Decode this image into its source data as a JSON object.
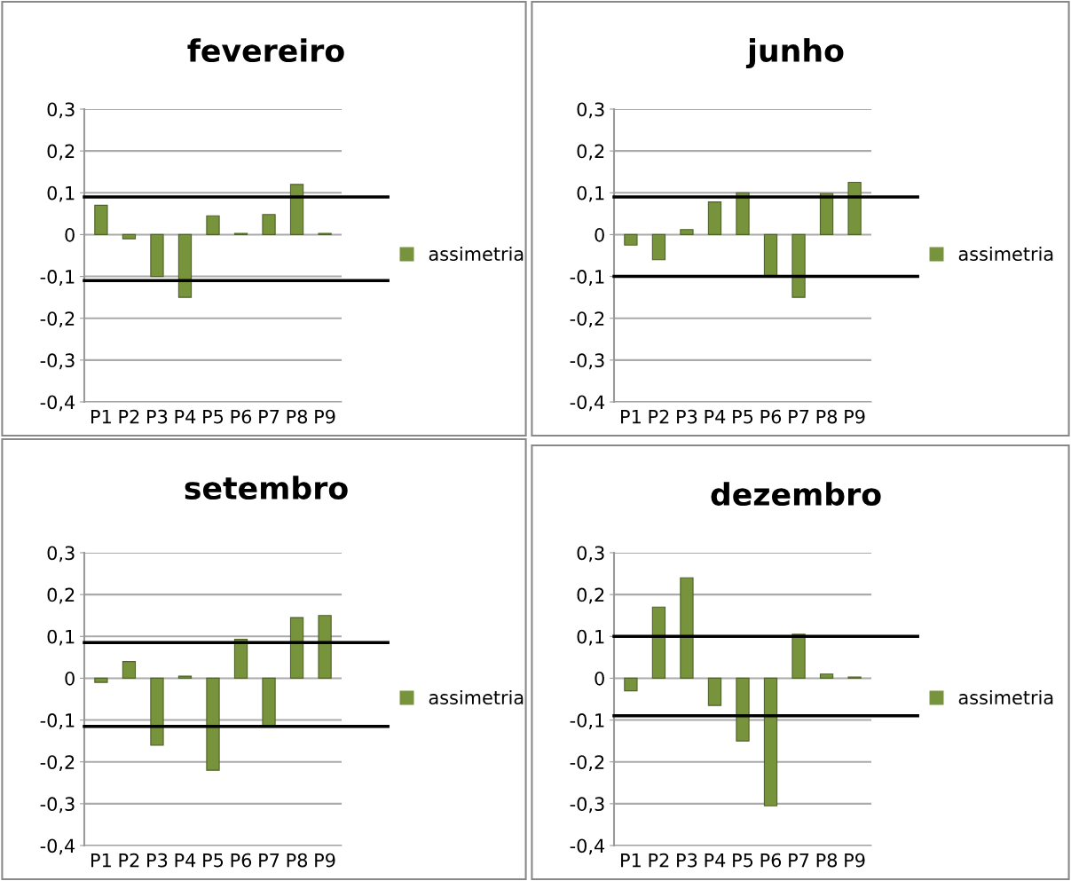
{
  "chart_data": [
    {
      "type": "bar",
      "title": "fevereiro",
      "categories": [
        "P1",
        "P2",
        "P3",
        "P4",
        "P5",
        "P6",
        "P7",
        "P8",
        "P9"
      ],
      "series": [
        {
          "name": "assimetria",
          "color": "#77933c",
          "values": [
            0.07,
            -0.01,
            -0.1,
            -0.15,
            0.045,
            0.003,
            0.048,
            0.12,
            0.003
          ]
        }
      ],
      "ylim": [
        -0.4,
        0.3
      ],
      "yticks": [
        {
          "value": -0.4,
          "label": "-0,4"
        },
        {
          "value": -0.3,
          "label": "-0,3"
        },
        {
          "value": -0.2,
          "label": "-0,2"
        },
        {
          "value": -0.1,
          "label": "-0,1"
        },
        0,
        {
          "value": 0.1,
          "label": "0,1"
        },
        {
          "value": 0.2,
          "label": "0,2"
        },
        {
          "value": 0.3,
          "label": "0,3"
        }
      ],
      "ref_lines": [
        {
          "axis": "y",
          "value": 0.09,
          "color": "#000000"
        },
        {
          "axis": "y",
          "value": -0.11,
          "color": "#000000"
        }
      ],
      "grid": "y",
      "legend": "right"
    },
    {
      "type": "bar",
      "title": "junho",
      "categories": [
        "P1",
        "P2",
        "P3",
        "P4",
        "P5",
        "P6",
        "P7",
        "P8",
        "P9"
      ],
      "series": [
        {
          "name": "assimetria",
          "color": "#77933c",
          "values": [
            -0.025,
            -0.06,
            0.012,
            0.078,
            0.1,
            -0.1,
            -0.15,
            0.098,
            0.125
          ]
        }
      ],
      "ylim": [
        -0.4,
        0.3
      ],
      "yticks": [
        {
          "value": -0.4,
          "label": "-0,4"
        },
        {
          "value": -0.3,
          "label": "-0,3"
        },
        {
          "value": -0.2,
          "label": "-0,2"
        },
        {
          "value": -0.1,
          "label": "-0,1"
        },
        0,
        {
          "value": 0.1,
          "label": "0,1"
        },
        {
          "value": 0.2,
          "label": "0,2"
        },
        {
          "value": 0.3,
          "label": "0,3"
        }
      ],
      "ref_lines": [
        {
          "axis": "y",
          "value": 0.09,
          "color": "#000000"
        },
        {
          "axis": "y",
          "value": -0.1,
          "color": "#000000"
        }
      ],
      "grid": "y",
      "legend": "right"
    },
    {
      "type": "bar",
      "title": "setembro",
      "categories": [
        "P1",
        "P2",
        "P3",
        "P4",
        "P5",
        "P6",
        "P7",
        "P8",
        "P9"
      ],
      "series": [
        {
          "name": "assimetria",
          "color": "#77933c",
          "values": [
            -0.01,
            0.04,
            -0.16,
            0.005,
            -0.22,
            0.093,
            -0.115,
            0.145,
            0.15
          ]
        }
      ],
      "ylim": [
        -0.4,
        0.3
      ],
      "yticks": [
        {
          "value": -0.4,
          "label": "-0,4"
        },
        {
          "value": -0.3,
          "label": "-0,3"
        },
        {
          "value": -0.2,
          "label": "-0,2"
        },
        {
          "value": -0.1,
          "label": "-0,1"
        },
        0,
        {
          "value": 0.1,
          "label": "0,1"
        },
        {
          "value": 0.2,
          "label": "0,2"
        },
        {
          "value": 0.3,
          "label": "0,3"
        }
      ],
      "ref_lines": [
        {
          "axis": "y",
          "value": 0.085,
          "color": "#000000"
        },
        {
          "axis": "y",
          "value": -0.115,
          "color": "#000000"
        }
      ],
      "grid": "y",
      "legend": "right"
    },
    {
      "type": "bar",
      "title": "dezembro",
      "categories": [
        "P1",
        "P2",
        "P3",
        "P4",
        "P5",
        "P6",
        "P7",
        "P8",
        "P9"
      ],
      "series": [
        {
          "name": "assimetria",
          "color": "#77933c",
          "values": [
            -0.03,
            0.17,
            0.24,
            -0.065,
            -0.15,
            -0.305,
            0.105,
            0.01,
            0.003
          ]
        }
      ],
      "ylim": [
        -0.4,
        0.3
      ],
      "yticks": [
        {
          "value": -0.4,
          "label": "-0,4"
        },
        {
          "value": -0.3,
          "label": "-0,3"
        },
        {
          "value": -0.2,
          "label": "-0,2"
        },
        {
          "value": -0.1,
          "label": "-0,1"
        },
        0,
        {
          "value": 0.1,
          "label": "0,1"
        },
        {
          "value": 0.2,
          "label": "0,2"
        },
        {
          "value": 0.3,
          "label": "0,3"
        }
      ],
      "ref_lines": [
        {
          "axis": "y",
          "value": 0.1,
          "color": "#000000"
        },
        {
          "axis": "y",
          "value": -0.09,
          "color": "#000000"
        }
      ],
      "grid": "y",
      "legend": "right"
    }
  ]
}
